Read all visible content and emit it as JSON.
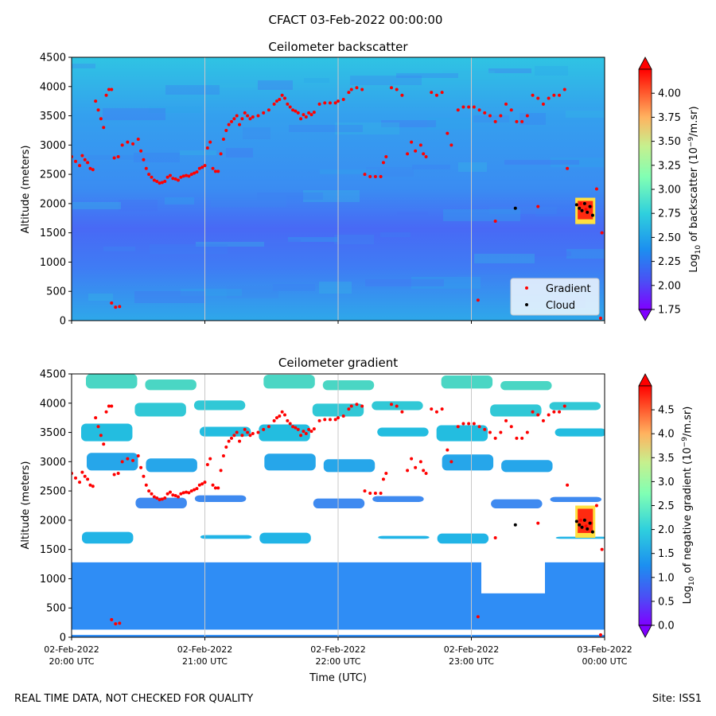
{
  "figure": {
    "suptitle": "CFACT 03-Feb-2022 00:00:00",
    "footer_left": "REAL TIME DATA, NOT CHECKED FOR QUALITY",
    "footer_right": "Site: ISS1"
  },
  "colors": {
    "gradient_marker": "#ff0000",
    "cloud_marker": "#000000",
    "gridline": "#c8c8c8"
  },
  "chart_data": [
    {
      "type": "heatmap",
      "title": "Ceilometer backscatter",
      "xlabel": "",
      "ylabel": "Altitude (meters)",
      "ylim": [
        0,
        4500
      ],
      "yticks": [
        0,
        500,
        1000,
        1500,
        2000,
        2500,
        3000,
        3500,
        4000,
        4500
      ],
      "ytick_labels": [
        "0",
        "500",
        "1000",
        "1500",
        "2000",
        "2500",
        "3000",
        "3500",
        "4000",
        "4500"
      ],
      "xlim_hours": [
        0,
        4
      ],
      "xticks_hours": [
        0,
        1,
        2,
        3,
        4
      ],
      "xtick_labels": [],
      "colorbar": {
        "label_parts": [
          "Log",
          "10",
          " of backscatter (10",
          "−9",
          "/m.sr)"
        ],
        "range": [
          1.75,
          4.25
        ],
        "ticks": [
          1.75,
          2.0,
          2.25,
          2.5,
          2.75,
          3.0,
          3.25,
          3.5,
          3.75,
          4.0
        ],
        "tick_labels": [
          "1.75",
          "2.00",
          "2.25",
          "2.50",
          "2.75",
          "3.00",
          "3.25",
          "3.50",
          "3.75",
          "4.00"
        ]
      },
      "legend": {
        "placement": "lower-right",
        "entries": [
          {
            "label": "Gradient",
            "color": "#ff0000"
          },
          {
            "label": "Cloud",
            "color": "#000000"
          }
        ]
      },
      "background_levels": [
        {
          "from_alt": 0,
          "to_alt": 700,
          "value": 2.42
        },
        {
          "from_alt": 700,
          "to_alt": 1900,
          "value": 2.22
        },
        {
          "from_alt": 1900,
          "to_alt": 3600,
          "value": 2.33
        },
        {
          "from_alt": 3600,
          "to_alt": 4500,
          "value": 2.48
        }
      ],
      "features": [
        {
          "x_from": 3.78,
          "x_to": 3.93,
          "alt_from": 1650,
          "alt_to": 2100,
          "value": 4.1
        }
      ]
    },
    {
      "type": "heatmap",
      "title": "Ceilometer gradient",
      "xlabel": "Time (UTC)",
      "ylabel": "Altitude (meters)",
      "ylim": [
        0,
        4500
      ],
      "yticks": [
        0,
        500,
        1000,
        1500,
        2000,
        2500,
        3000,
        3500,
        4000,
        4500
      ],
      "ytick_labels": [
        "0",
        "500",
        "1000",
        "1500",
        "2000",
        "2500",
        "3000",
        "3500",
        "4000",
        "4500"
      ],
      "xlim_hours": [
        0,
        4
      ],
      "xticks_hours": [
        0,
        1,
        2,
        3,
        4
      ],
      "xtick_labels": [
        {
          "line1": "02-Feb-2022",
          "line2": "20:00 UTC"
        },
        {
          "line1": "02-Feb-2022",
          "line2": "21:00 UTC"
        },
        {
          "line1": "02-Feb-2022",
          "line2": "22:00 UTC"
        },
        {
          "line1": "02-Feb-2022",
          "line2": "23:00 UTC"
        },
        {
          "line1": "03-Feb-2022",
          "line2": "00:00 UTC"
        }
      ],
      "colorbar": {
        "label_parts": [
          "Log",
          "10",
          " of negative gradient (10",
          "−9",
          "/m.sr)"
        ],
        "range": [
          0.0,
          5.0
        ],
        "ticks": [
          0.0,
          0.5,
          1.0,
          1.5,
          2.0,
          2.5,
          3.0,
          3.5,
          4.0,
          4.5
        ],
        "tick_labels": [
          "0.0",
          "0.5",
          "1.0",
          "1.5",
          "2.0",
          "2.5",
          "3.0",
          "3.5",
          "4.0",
          "4.5"
        ]
      },
      "bands": [
        {
          "alt_from": 0,
          "alt_to": 1280,
          "value": 1.2,
          "color": "#2f8df5"
        },
        {
          "alt_from": 1600,
          "alt_to": 1800,
          "value": 1.5,
          "color": "#21b4e6"
        },
        {
          "alt_from": 2230,
          "alt_to": 2480,
          "value": 1.2,
          "color": "#3f8af0"
        },
        {
          "alt_from": 2850,
          "alt_to": 3150,
          "value": 1.4,
          "color": "#26a6ea"
        },
        {
          "alt_from": 3350,
          "alt_to": 3650,
          "value": 1.6,
          "color": "#23bde0"
        },
        {
          "alt_from": 3800,
          "alt_to": 4100,
          "value": 1.6,
          "color": "#31c8d6"
        },
        {
          "alt_from": 4250,
          "alt_to": 4500,
          "value": 1.8,
          "color": "#4ad6c4"
        }
      ],
      "features": [
        {
          "x_from": 3.78,
          "x_to": 3.93,
          "alt_from": 1700,
          "alt_to": 2250,
          "value": 4.7
        }
      ]
    }
  ],
  "overlay_points": {
    "gradient": [
      [
        0.0,
        2800
      ],
      [
        0.03,
        2720
      ],
      [
        0.06,
        2650
      ],
      [
        0.08,
        2820
      ],
      [
        0.1,
        2750
      ],
      [
        0.12,
        2700
      ],
      [
        0.14,
        2600
      ],
      [
        0.16,
        2580
      ],
      [
        0.18,
        3750
      ],
      [
        0.2,
        3600
      ],
      [
        0.22,
        3450
      ],
      [
        0.24,
        3300
      ],
      [
        0.26,
        3850
      ],
      [
        0.28,
        3950
      ],
      [
        0.3,
        3950
      ],
      [
        0.32,
        2780
      ],
      [
        0.35,
        2800
      ],
      [
        0.38,
        3000
      ],
      [
        0.42,
        3050
      ],
      [
        0.46,
        3020
      ],
      [
        0.5,
        3100
      ],
      [
        0.52,
        2900
      ],
      [
        0.54,
        2750
      ],
      [
        0.56,
        2600
      ],
      [
        0.58,
        2500
      ],
      [
        0.6,
        2450
      ],
      [
        0.62,
        2400
      ],
      [
        0.64,
        2380
      ],
      [
        0.66,
        2350
      ],
      [
        0.68,
        2360
      ],
      [
        0.7,
        2380
      ],
      [
        0.72,
        2450
      ],
      [
        0.74,
        2480
      ],
      [
        0.76,
        2430
      ],
      [
        0.78,
        2420
      ],
      [
        0.8,
        2400
      ],
      [
        0.82,
        2450
      ],
      [
        0.84,
        2470
      ],
      [
        0.86,
        2480
      ],
      [
        0.88,
        2470
      ],
      [
        0.9,
        2500
      ],
      [
        0.92,
        2520
      ],
      [
        0.94,
        2540
      ],
      [
        0.96,
        2600
      ],
      [
        0.98,
        2620
      ],
      [
        1.0,
        2650
      ],
      [
        1.02,
        2950
      ],
      [
        1.04,
        3050
      ],
      [
        1.06,
        2600
      ],
      [
        1.08,
        2550
      ],
      [
        1.1,
        2550
      ],
      [
        1.12,
        2850
      ],
      [
        1.14,
        3100
      ],
      [
        1.16,
        3250
      ],
      [
        1.18,
        3350
      ],
      [
        1.2,
        3400
      ],
      [
        1.22,
        3450
      ],
      [
        1.24,
        3500
      ],
      [
        1.26,
        3350
      ],
      [
        1.28,
        3450
      ],
      [
        1.3,
        3550
      ],
      [
        1.32,
        3500
      ],
      [
        1.34,
        3450
      ],
      [
        1.36,
        3480
      ],
      [
        1.4,
        3500
      ],
      [
        1.44,
        3550
      ],
      [
        1.48,
        3600
      ],
      [
        1.52,
        3700
      ],
      [
        1.54,
        3750
      ],
      [
        1.56,
        3780
      ],
      [
        1.58,
        3850
      ],
      [
        1.6,
        3800
      ],
      [
        1.62,
        3700
      ],
      [
        1.64,
        3650
      ],
      [
        1.66,
        3600
      ],
      [
        1.68,
        3580
      ],
      [
        1.7,
        3550
      ],
      [
        1.72,
        3450
      ],
      [
        1.74,
        3520
      ],
      [
        1.76,
        3480
      ],
      [
        1.78,
        3550
      ],
      [
        1.8,
        3520
      ],
      [
        1.82,
        3560
      ],
      [
        1.86,
        3700
      ],
      [
        1.9,
        3720
      ],
      [
        1.94,
        3720
      ],
      [
        1.98,
        3720
      ],
      [
        2.0,
        3750
      ],
      [
        2.04,
        3780
      ],
      [
        2.08,
        3900
      ],
      [
        2.1,
        3950
      ],
      [
        2.14,
        3980
      ],
      [
        2.18,
        3950
      ],
      [
        2.2,
        2500
      ],
      [
        2.24,
        2460
      ],
      [
        2.28,
        2460
      ],
      [
        2.32,
        2460
      ],
      [
        2.34,
        2700
      ],
      [
        2.36,
        2800
      ],
      [
        2.4,
        3980
      ],
      [
        2.44,
        3950
      ],
      [
        2.48,
        3850
      ],
      [
        2.52,
        2850
      ],
      [
        2.55,
        3050
      ],
      [
        2.58,
        2900
      ],
      [
        2.62,
        3000
      ],
      [
        2.64,
        2850
      ],
      [
        2.66,
        2800
      ],
      [
        2.7,
        3900
      ],
      [
        2.74,
        3850
      ],
      [
        2.78,
        3900
      ],
      [
        2.82,
        3200
      ],
      [
        2.85,
        3000
      ],
      [
        2.9,
        3600
      ],
      [
        2.94,
        3650
      ],
      [
        2.98,
        3650
      ],
      [
        3.02,
        3650
      ],
      [
        3.06,
        3600
      ],
      [
        3.1,
        3550
      ],
      [
        3.14,
        3500
      ],
      [
        3.18,
        3400
      ],
      [
        3.22,
        3500
      ],
      [
        3.26,
        3700
      ],
      [
        3.3,
        3600
      ],
      [
        3.34,
        3400
      ],
      [
        3.38,
        3400
      ],
      [
        3.42,
        3500
      ],
      [
        3.46,
        3850
      ],
      [
        3.5,
        3800
      ],
      [
        3.54,
        3700
      ],
      [
        3.58,
        3800
      ],
      [
        3.62,
        3850
      ],
      [
        3.66,
        3850
      ],
      [
        3.7,
        3950
      ],
      [
        3.72,
        2600
      ],
      [
        0.3,
        300
      ],
      [
        0.33,
        230
      ],
      [
        0.36,
        240
      ],
      [
        3.05,
        350
      ],
      [
        3.18,
        1700
      ],
      [
        3.5,
        1950
      ],
      [
        3.82,
        2000
      ],
      [
        3.86,
        1900
      ],
      [
        3.9,
        1950
      ],
      [
        3.94,
        2250
      ],
      [
        3.98,
        1500
      ],
      [
        3.97,
        40
      ]
    ],
    "cloud": [
      [
        3.33,
        1920
      ],
      [
        3.79,
        1980
      ],
      [
        3.81,
        1920
      ],
      [
        3.83,
        1880
      ],
      [
        3.85,
        2000
      ],
      [
        3.87,
        1850
      ],
      [
        3.89,
        1950
      ],
      [
        3.91,
        1800
      ]
    ]
  }
}
